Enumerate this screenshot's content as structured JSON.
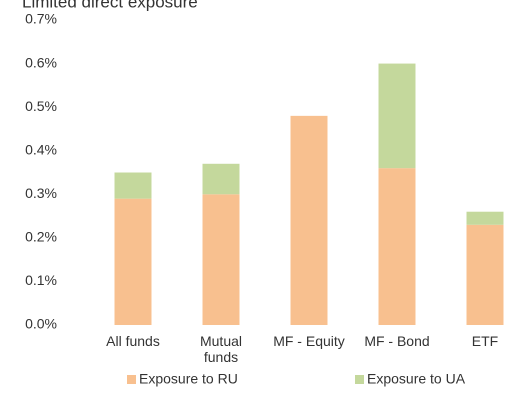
{
  "chart_data": {
    "type": "stacked_bar",
    "title": "Limited direct exposure",
    "categories": [
      "All funds",
      "Mutual funds",
      "MF - Equity",
      "MF - Bond",
      "ETF"
    ],
    "series": [
      {
        "name": "Exposure to RU",
        "color": "#f8c08f",
        "values": [
          0.29,
          0.3,
          0.48,
          0.36,
          0.23
        ]
      },
      {
        "name": "Exposure to UA",
        "color": "#c4d89c",
        "values": [
          0.06,
          0.07,
          0,
          0.24,
          0.03
        ]
      }
    ],
    "ylim": [
      0,
      0.7
    ],
    "yticks": [
      {
        "value": 0,
        "label": "0.0%"
      },
      {
        "value": 0.1,
        "label": "0.1%"
      },
      {
        "value": 0.2,
        "label": "0.2%"
      },
      {
        "value": 0.3,
        "label": "0.3%"
      },
      {
        "value": 0.4,
        "label": "0.4%"
      },
      {
        "value": 0.5,
        "label": "0.5%"
      },
      {
        "value": 0.6,
        "label": "0.6%"
      },
      {
        "value": 0.7,
        "label": "0.7%"
      }
    ],
    "grid": false,
    "legend": "bottom"
  }
}
